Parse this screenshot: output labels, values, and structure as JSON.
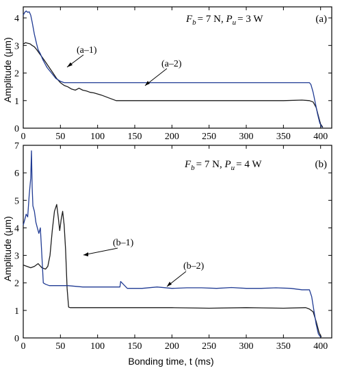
{
  "chart_data": [
    {
      "type": "line",
      "panel_label": "(a)",
      "condition": {
        "f_symbol": "F",
        "f_sub": "b",
        "f_value": "= 7 N, ",
        "p_symbol": "P",
        "p_sub": "u",
        "p_value": "= 3 W"
      },
      "xlim": [
        0,
        415
      ],
      "ylim": [
        0,
        4.4
      ],
      "xticks": [
        0,
        50,
        100,
        150,
        200,
        250,
        300,
        350,
        400
      ],
      "yticks": [
        0,
        1,
        2,
        3,
        4
      ],
      "ylabel": "Amplitude  (μm)",
      "grid": false,
      "series": [
        {
          "name": "(a–1)",
          "color": "#1a1a1a",
          "x": [
            0,
            3,
            6,
            9,
            12,
            15,
            18,
            22,
            26,
            30,
            35,
            40,
            45,
            50,
            55,
            60,
            65,
            70,
            75,
            80,
            85,
            90,
            95,
            100,
            105,
            110,
            115,
            120,
            125,
            130,
            150,
            200,
            250,
            300,
            350,
            375,
            385,
            390,
            394,
            397,
            400,
            403
          ],
          "y": [
            3.05,
            3.1,
            3.08,
            3.06,
            3.0,
            2.95,
            2.85,
            2.7,
            2.55,
            2.4,
            2.2,
            2.0,
            1.8,
            1.65,
            1.55,
            1.5,
            1.42,
            1.38,
            1.45,
            1.38,
            1.35,
            1.3,
            1.28,
            1.24,
            1.2,
            1.15,
            1.1,
            1.05,
            1.0,
            1.0,
            1.0,
            1.0,
            1.0,
            1.0,
            1.0,
            1.02,
            1.0,
            0.95,
            0.75,
            0.45,
            0.15,
            0.03
          ]
        },
        {
          "name": "(a–2)",
          "color": "#1f3a93",
          "x": [
            0,
            2,
            4,
            6,
            8,
            10,
            12,
            15,
            18,
            20,
            23,
            26,
            29,
            32,
            35,
            38,
            41,
            44,
            47,
            50,
            55,
            60,
            100,
            200,
            300,
            385,
            387,
            390,
            393,
            396,
            399,
            402
          ],
          "y": [
            4.1,
            4.2,
            4.25,
            4.2,
            4.22,
            4.1,
            3.85,
            3.4,
            3.05,
            2.85,
            2.7,
            2.5,
            2.35,
            2.2,
            2.1,
            2.0,
            1.9,
            1.8,
            1.75,
            1.7,
            1.65,
            1.65,
            1.65,
            1.65,
            1.65,
            1.65,
            1.58,
            1.3,
            0.9,
            0.5,
            0.18,
            0.03
          ]
        }
      ]
    },
    {
      "type": "line",
      "panel_label": "(b)",
      "condition": {
        "f_symbol": "F",
        "f_sub": "b",
        "f_value": "= 7 N, ",
        "p_symbol": "P",
        "p_sub": "u",
        "p_value": "= 4 W"
      },
      "xlim": [
        0,
        415
      ],
      "xlabel": "Bonding time,  t  (ms)",
      "ylim": [
        0,
        7
      ],
      "xticks": [
        0,
        50,
        100,
        150,
        200,
        250,
        300,
        350,
        400
      ],
      "yticks": [
        0,
        1,
        2,
        3,
        4,
        5,
        6,
        7
      ],
      "ylabel": "Amplitude  (μm)",
      "grid": false,
      "series": [
        {
          "name": "(b–1)",
          "color": "#1a1a1a",
          "x": [
            0,
            5,
            10,
            15,
            20,
            25,
            30,
            33,
            36,
            39,
            42,
            45,
            47,
            49,
            51,
            53,
            55,
            57,
            59,
            61,
            63,
            70,
            100,
            150,
            200,
            250,
            300,
            350,
            380,
            385,
            390,
            394,
            398,
            401
          ],
          "y": [
            2.65,
            2.6,
            2.55,
            2.6,
            2.7,
            2.55,
            2.5,
            2.6,
            3.0,
            3.9,
            4.6,
            4.85,
            4.4,
            3.9,
            4.3,
            4.6,
            4.1,
            3.2,
            1.8,
            1.12,
            1.1,
            1.1,
            1.1,
            1.1,
            1.1,
            1.08,
            1.1,
            1.08,
            1.1,
            1.05,
            0.95,
            0.6,
            0.2,
            0.03
          ]
        },
        {
          "name": "(b–2)",
          "color": "#1f3a93",
          "x": [
            0,
            2,
            4,
            6,
            8,
            10,
            11,
            12,
            13,
            15,
            17,
            19,
            21,
            23,
            25,
            27,
            30,
            35,
            45,
            60,
            80,
            100,
            120,
            130,
            131,
            140,
            160,
            180,
            200,
            220,
            240,
            260,
            280,
            300,
            320,
            340,
            360,
            375,
            385,
            388,
            391,
            394,
            397,
            400
          ],
          "y": [
            4.1,
            4.3,
            4.5,
            4.4,
            5.2,
            5.8,
            6.8,
            5.5,
            4.8,
            4.6,
            4.2,
            4.0,
            3.8,
            4.0,
            3.0,
            2.0,
            1.95,
            1.9,
            1.9,
            1.9,
            1.85,
            1.85,
            1.85,
            1.85,
            2.05,
            1.8,
            1.8,
            1.85,
            1.8,
            1.82,
            1.82,
            1.8,
            1.83,
            1.8,
            1.8,
            1.82,
            1.8,
            1.75,
            1.75,
            1.5,
            1.0,
            0.5,
            0.15,
            0.03
          ]
        }
      ]
    }
  ]
}
